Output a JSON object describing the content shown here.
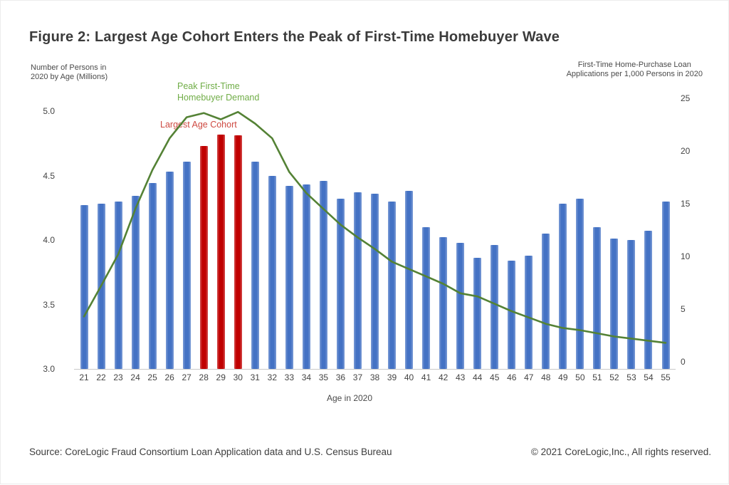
{
  "figure": {
    "title": "Figure 2: Largest Age Cohort Enters the Peak of First-Time Homebuyer Wave",
    "left_axis_title": "Number of Persons in\n2020 by Age (Millions)",
    "right_axis_title": "First-Time Home-Purchase Loan\nApplications per 1,000 Persons in 2020",
    "x_axis_title": "Age in 2020",
    "annotations": {
      "peak_demand": "Peak First-Time\nHomebuyer Demand",
      "largest_cohort": "Largest Age Cohort"
    },
    "footer": {
      "source": "Source: CoreLogic Fraud Consortium Loan Application data and U.S. Census Bureau",
      "copyright": "© 2021 CoreLogic,Inc., All rights reserved."
    }
  },
  "colors": {
    "bar_blue": "#4472C4",
    "bar_red": "#C00000",
    "line_green": "#548235",
    "annotation_green": "#70AD47",
    "annotation_red": "#CE4A42",
    "tick_text": "#444444"
  },
  "chart_data": {
    "type": "bar+line",
    "title": "Figure 2: Largest Age Cohort Enters the Peak of First-Time Homebuyer Wave",
    "xlabel": "Age in 2020",
    "grid": false,
    "categories": [
      21,
      22,
      23,
      24,
      25,
      26,
      27,
      28,
      29,
      30,
      31,
      32,
      33,
      34,
      35,
      36,
      37,
      38,
      39,
      40,
      41,
      42,
      43,
      44,
      45,
      46,
      47,
      48,
      49,
      50,
      51,
      52,
      53,
      54,
      55
    ],
    "series": [
      {
        "name": "Number of Persons in 2020 by Age (Millions)",
        "type": "bar",
        "axis": "left",
        "values": [
          4.27,
          4.28,
          4.3,
          4.34,
          4.44,
          4.53,
          4.61,
          4.73,
          4.82,
          4.81,
          4.61,
          4.5,
          4.42,
          4.43,
          4.46,
          4.32,
          4.37,
          4.36,
          4.3,
          4.38,
          4.1,
          4.02,
          3.98,
          3.86,
          3.96,
          3.84,
          3.88,
          4.05,
          4.28,
          4.32,
          4.1,
          4.01,
          4.0,
          4.07,
          4.3
        ],
        "highlight_categories": [
          28,
          29,
          30
        ]
      },
      {
        "name": "First-Time Home-Purchase Loan Applications per 1,000 Persons in 2020",
        "type": "line",
        "axis": "right",
        "values": [
          4.3,
          7.2,
          10.2,
          14.5,
          18.2,
          21.2,
          23.2,
          23.6,
          23.0,
          23.7,
          22.6,
          21.2,
          18.0,
          16.0,
          14.5,
          13.0,
          11.8,
          10.7,
          9.5,
          8.8,
          8.1,
          7.4,
          6.5,
          6.2,
          5.5,
          4.8,
          4.2,
          3.6,
          3.2,
          3.0,
          2.7,
          2.4,
          2.2,
          2.0,
          1.8
        ]
      }
    ],
    "left_axis": {
      "min": 3.0,
      "max": 5.0,
      "ticks": [
        "5.0",
        "4.5",
        "4.0",
        "3.5",
        "3.0"
      ]
    },
    "right_axis": {
      "min": 0,
      "max": 25,
      "ticks": [
        "25",
        "20",
        "15",
        "10",
        "5",
        "0"
      ]
    }
  }
}
